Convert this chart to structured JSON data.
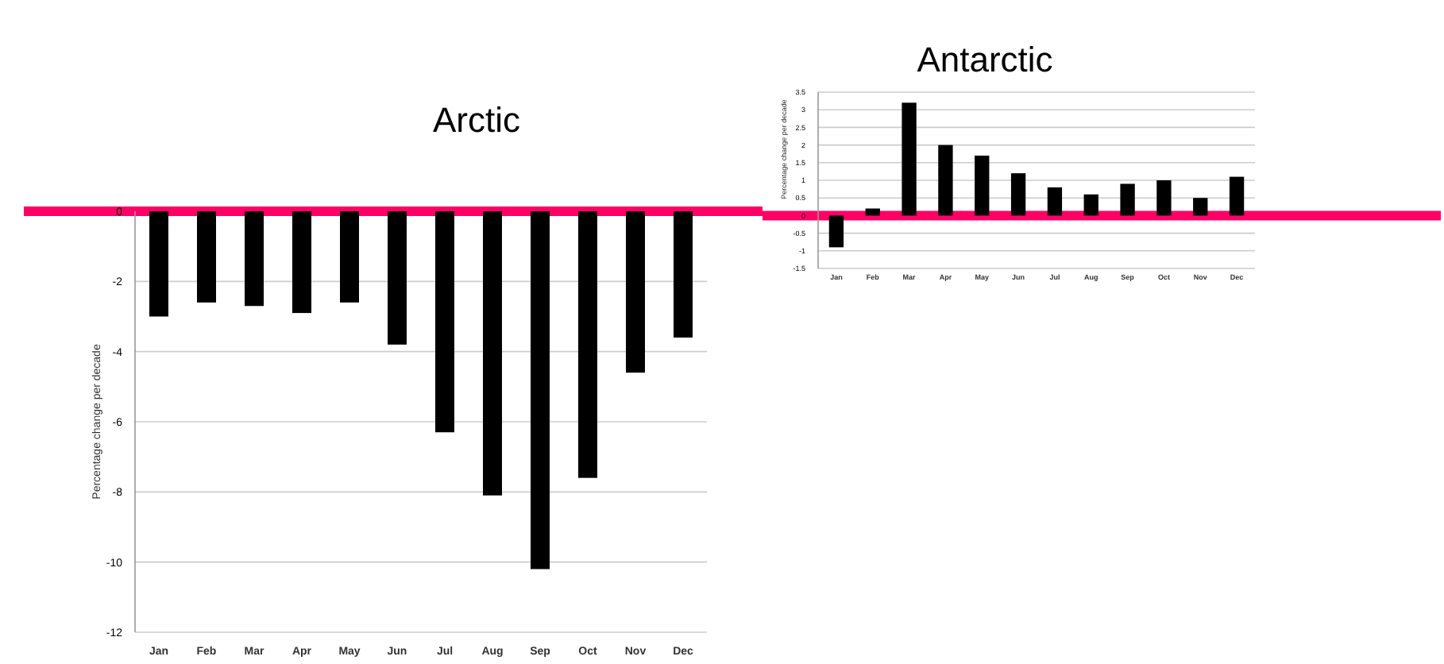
{
  "chart_data": [
    {
      "type": "bar",
      "title": "Arctic",
      "ylabel": "Percentage change per decade",
      "categories": [
        "Jan",
        "Feb",
        "Mar",
        "Apr",
        "May",
        "Jun",
        "Jul",
        "Aug",
        "Sep",
        "Oct",
        "Nov",
        "Dec"
      ],
      "values": [
        -3.0,
        -2.6,
        -2.7,
        -2.9,
        -2.6,
        -3.8,
        -6.3,
        -8.1,
        -10.2,
        -7.6,
        -4.6,
        -3.6
      ],
      "color": "#000000",
      "ylim": [
        -12,
        0
      ],
      "yticks": [
        -12,
        -10,
        -8,
        -6,
        -4,
        -2,
        0
      ],
      "grid": "y",
      "ref_lines": [
        {
          "axis": "y",
          "value": 0,
          "color": "#ff0066"
        }
      ]
    },
    {
      "type": "bar",
      "title": "Antarctic",
      "ylabel": "Percentage change per decade",
      "categories": [
        "Jan",
        "Feb",
        "Mar",
        "Apr",
        "May",
        "Jun",
        "Jul",
        "Aug",
        "Sep",
        "Oct",
        "Nov",
        "Dec"
      ],
      "values": [
        -0.9,
        0.2,
        3.2,
        2.0,
        1.7,
        1.2,
        0.8,
        0.6,
        0.9,
        1.0,
        0.5,
        1.1
      ],
      "color": "#000000",
      "ylim": [
        -1.5,
        3.5
      ],
      "yticks": [
        -1.5,
        -1,
        -0.5,
        0,
        0.5,
        1,
        1.5,
        2,
        2.5,
        3,
        3.5
      ],
      "grid": "y",
      "ref_lines": [
        {
          "axis": "y",
          "value": 0,
          "color": "#ff0066"
        }
      ]
    }
  ]
}
